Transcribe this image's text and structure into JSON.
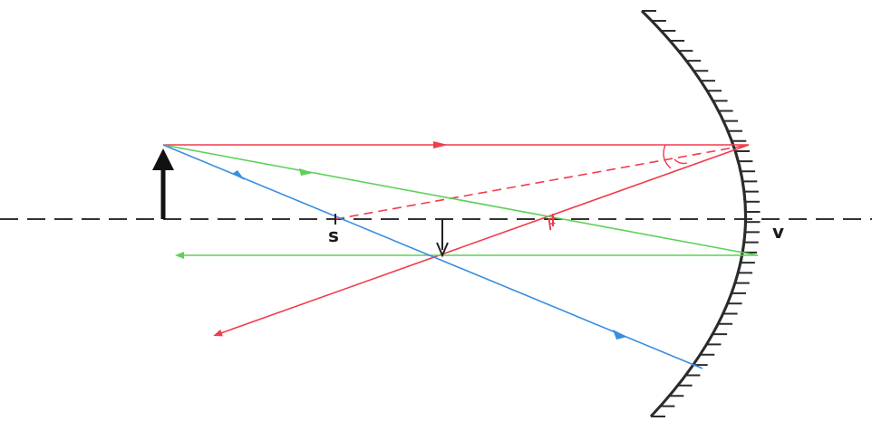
{
  "labels": {
    "center": "s",
    "vertex": "v",
    "focus": "F"
  },
  "colors": {
    "axis": "#333333",
    "mirror": "#2b2b2b",
    "object": "#111111",
    "image": "#222222",
    "ray_red": "#f03c4c",
    "ray_green": "#5fd05a",
    "ray_blue": "#3a8ee0"
  }
}
